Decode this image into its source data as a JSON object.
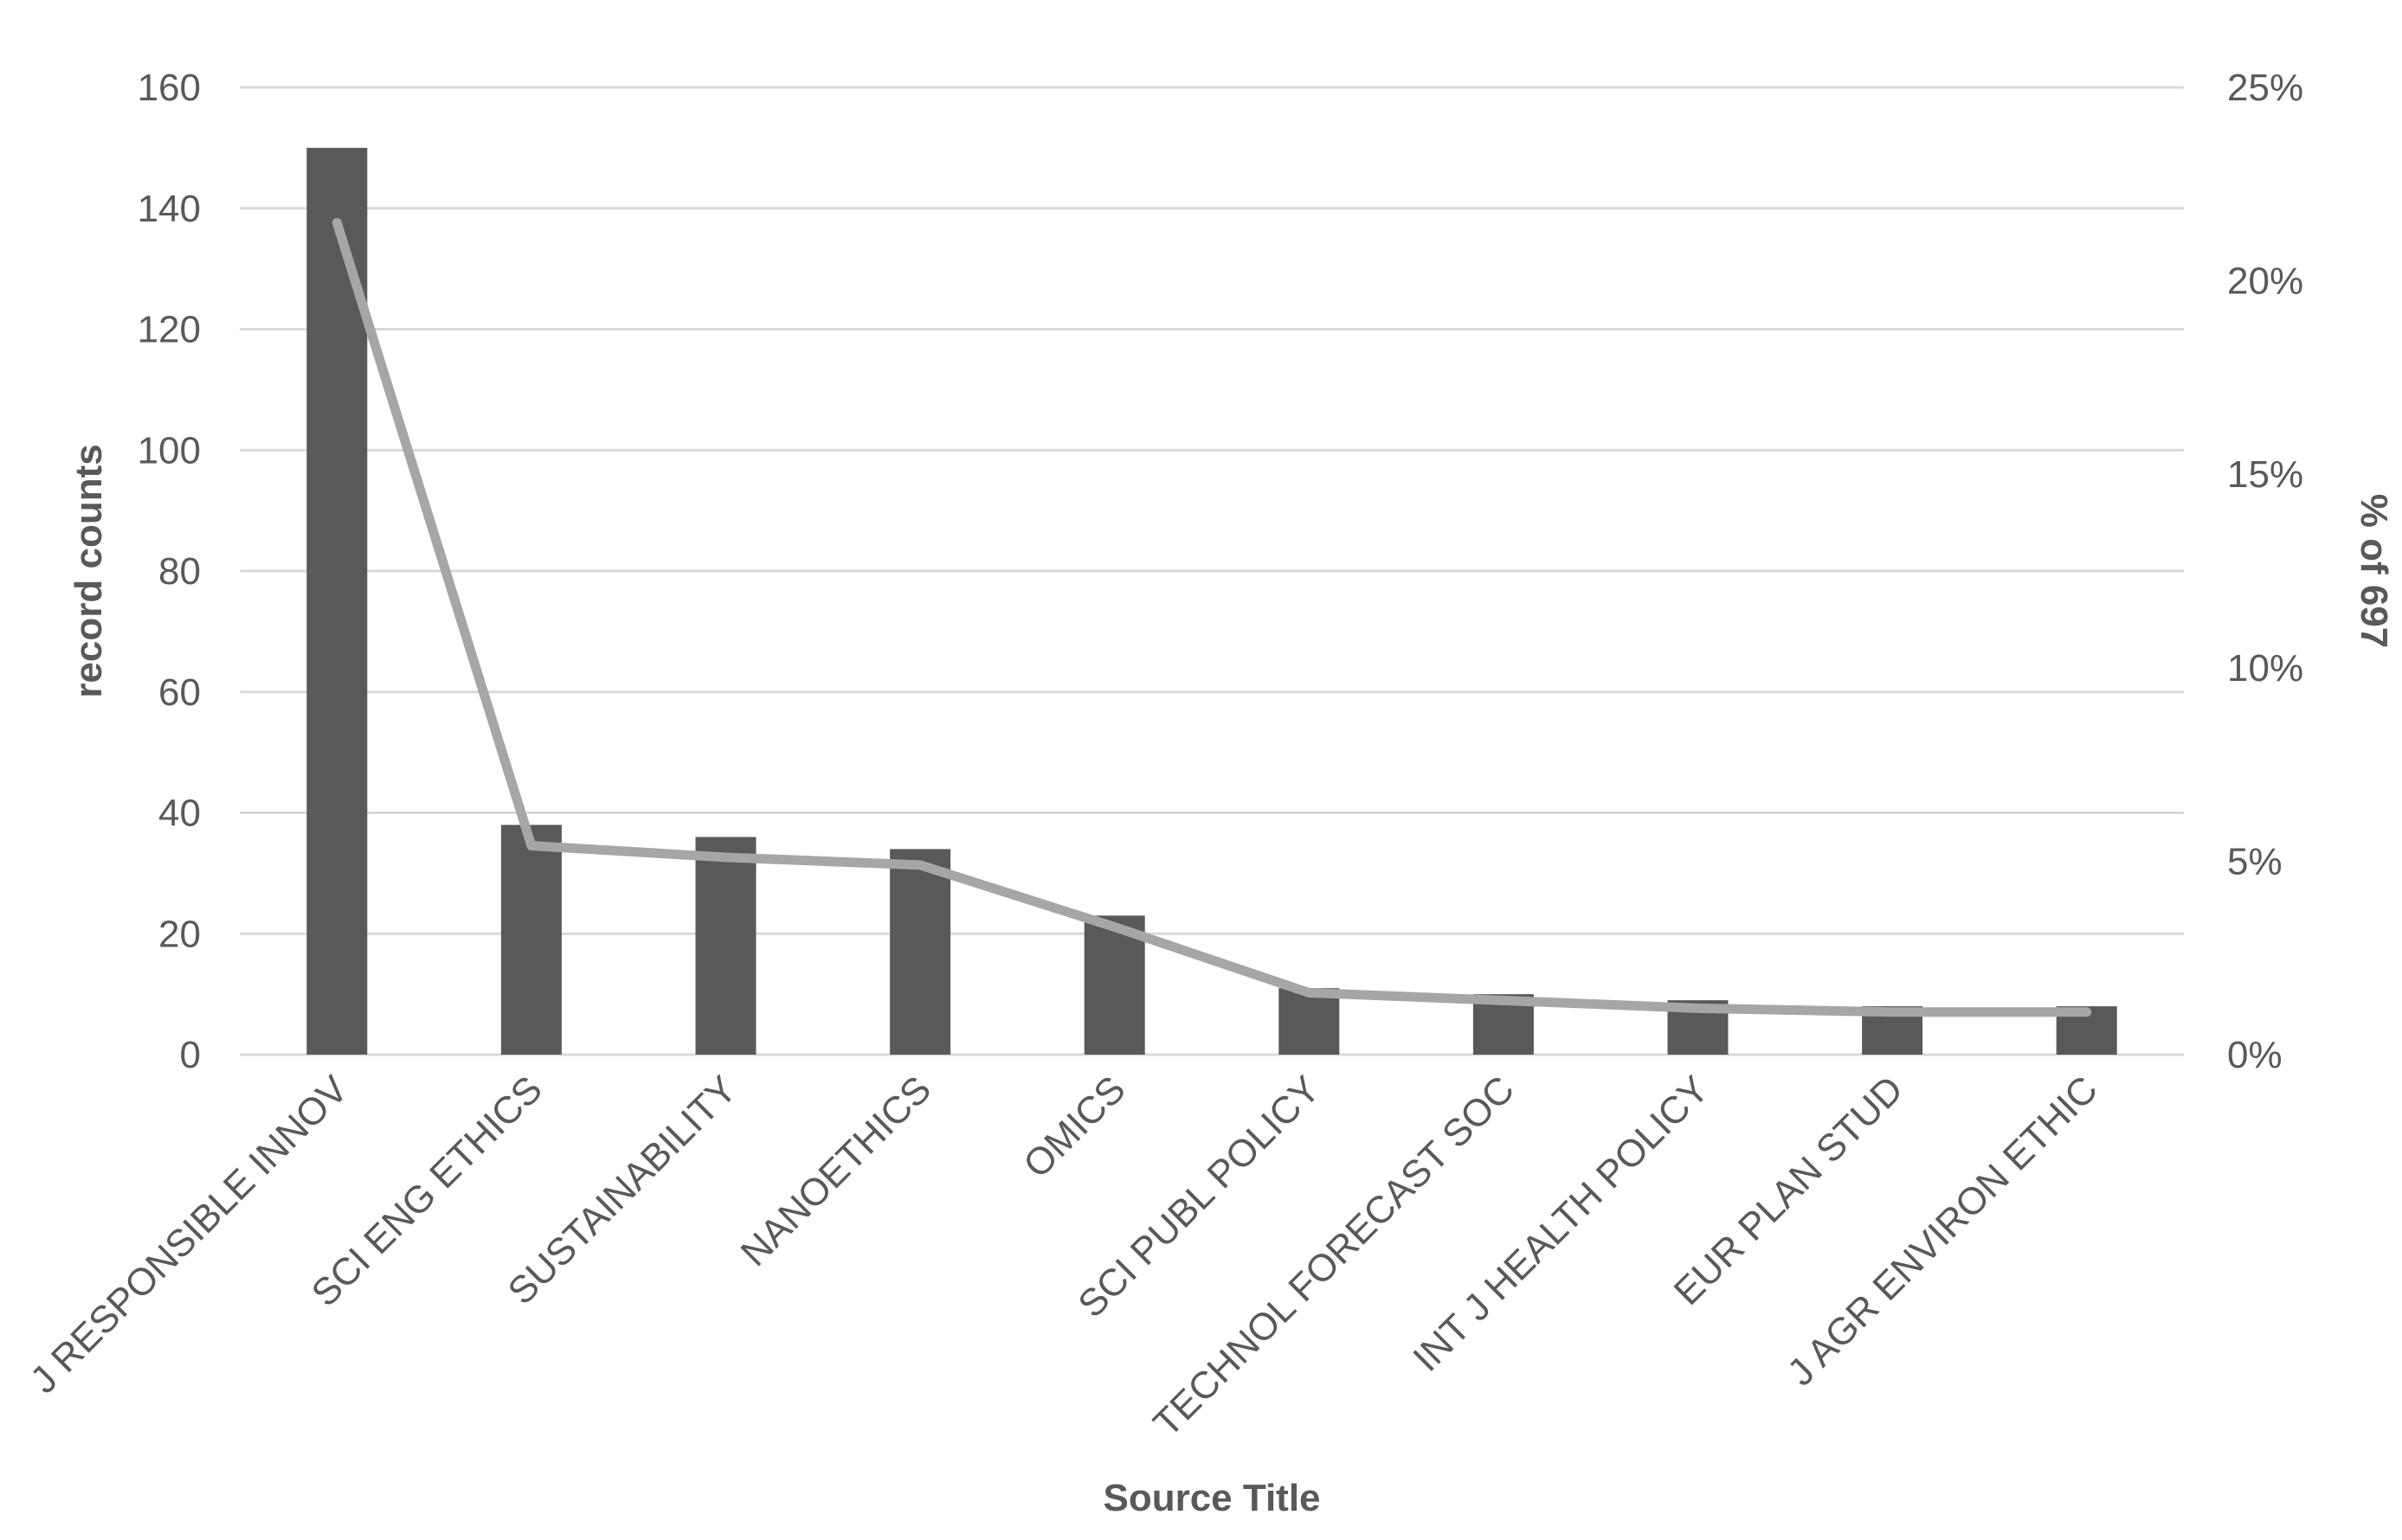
{
  "chart_data": {
    "type": "bar",
    "xlabel": "Source Title",
    "ylabel": "record counts",
    "y2label": "% of 697",
    "ylim": [
      0,
      160
    ],
    "y2lim": [
      0,
      25
    ],
    "yticks": [
      "0",
      "20",
      "40",
      "60",
      "80",
      "100",
      "120",
      "140",
      "160"
    ],
    "y2ticks": [
      "0%",
      "5%",
      "10%",
      "15%",
      "20%",
      "25%"
    ],
    "grid": true,
    "categories": [
      "J RESPONSIBLE INNOV",
      "SCI ENG ETHICS",
      "SUSTAINABILITY",
      "NANOETHICS",
      "OMICS",
      "SCI PUBL POLICY",
      "TECHNOL FORECAST SOC",
      "INT J HEALTH POLICY",
      "EUR PLAN STUD",
      "J AGR ENVIRON ETHIC"
    ],
    "series": [
      {
        "type": "bar",
        "axis": "left",
        "values": [
          150,
          38,
          36,
          34,
          23,
          11,
          10,
          9,
          8,
          8
        ]
      },
      {
        "type": "line",
        "axis": "right",
        "values": [
          21.5,
          5.4,
          5.1,
          4.9,
          3.3,
          1.6,
          1.4,
          1.2,
          1.1,
          1.1
        ]
      }
    ],
    "colors": {
      "bar": "#595959",
      "line": "#a6a6a6",
      "grid": "#d9d9d9",
      "text": "#595959"
    }
  }
}
